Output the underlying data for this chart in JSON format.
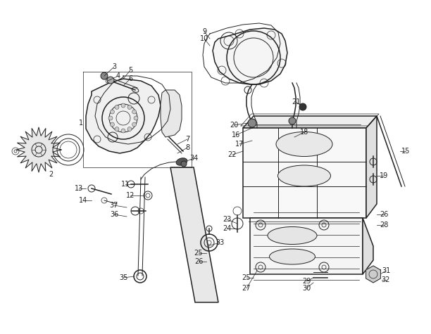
{
  "bg_color": "#ffffff",
  "line_color": "#222222",
  "label_color": "#222222",
  "fig_width": 6.12,
  "fig_height": 4.75,
  "dpi": 100,
  "label_fontsize": 7.0
}
